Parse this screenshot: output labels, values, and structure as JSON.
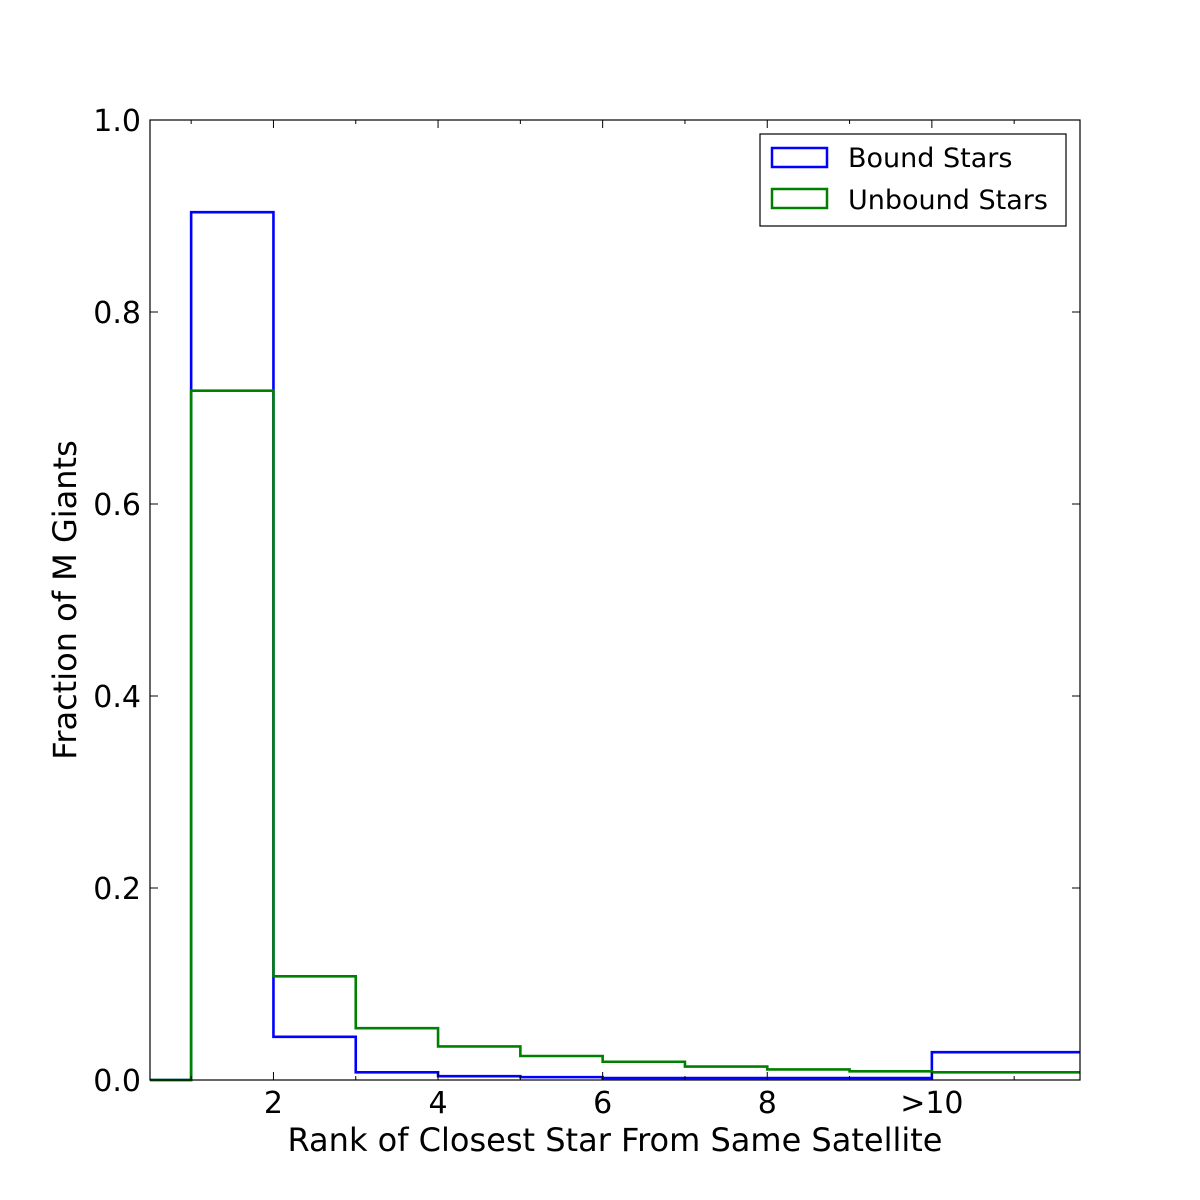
{
  "chart_data": {
    "type": "step-histogram",
    "xlabel": "Rank of Closest Star From Same Satellite",
    "ylabel": "Fraction of M Giants",
    "xlim": [
      0.5,
      11.8
    ],
    "ylim": [
      0,
      1.0
    ],
    "x_ticks": [
      {
        "value": 2,
        "label": "2"
      },
      {
        "value": 4,
        "label": "4"
      },
      {
        "value": 6,
        "label": "6"
      },
      {
        "value": 8,
        "label": "8"
      },
      {
        "value": 10,
        "label": ">10"
      }
    ],
    "y_ticks": [
      {
        "value": 0.0,
        "label": "0.0"
      },
      {
        "value": 0.2,
        "label": "0.2"
      },
      {
        "value": 0.4,
        "label": "0.4"
      },
      {
        "value": 0.6,
        "label": "0.6"
      },
      {
        "value": 0.8,
        "label": "0.8"
      },
      {
        "value": 1.0,
        "label": "1.0"
      }
    ],
    "bin_edges": [
      1,
      2,
      3,
      4,
      5,
      6,
      7,
      8,
      9,
      10,
      11.8
    ],
    "legend_position": "top-right",
    "series": [
      {
        "name": "Bound Stars",
        "color": "#0000ff",
        "values": [
          0.904,
          0.045,
          0.008,
          0.004,
          0.003,
          0.002,
          0.002,
          0.002,
          0.002,
          0.029
        ]
      },
      {
        "name": "Unbound Stars",
        "color": "#008000",
        "values": [
          0.718,
          0.108,
          0.054,
          0.035,
          0.025,
          0.019,
          0.014,
          0.011,
          0.009,
          0.008
        ]
      }
    ]
  }
}
